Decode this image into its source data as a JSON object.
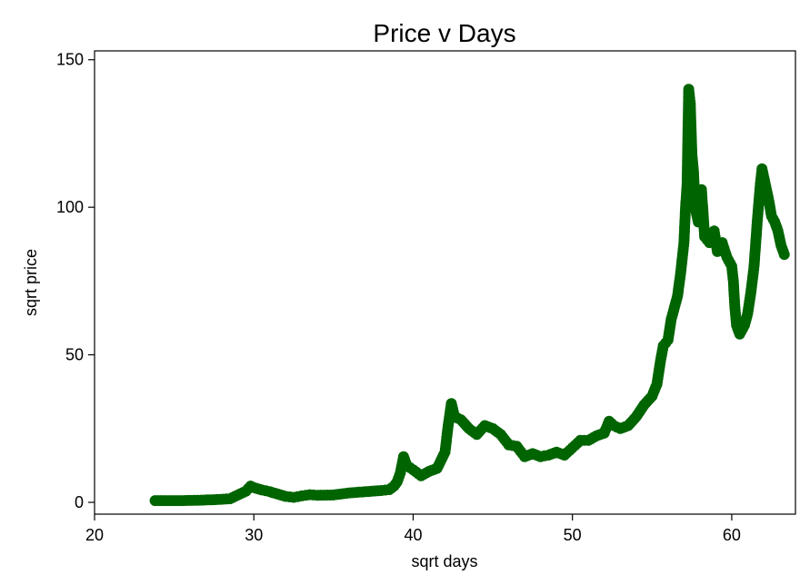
{
  "chart_data": {
    "type": "scatter",
    "title": "Price v Days",
    "xlabel": "sqrt days",
    "ylabel": "sqrt price",
    "xlim": [
      20,
      64
    ],
    "ylim": [
      -4,
      153
    ],
    "xticks": [
      20,
      30,
      40,
      50,
      60
    ],
    "yticks": [
      0,
      50,
      100,
      150
    ],
    "xtick_labels": [
      "20",
      "30",
      "40",
      "50",
      "60"
    ],
    "ytick_labels": [
      "0",
      "50",
      "100",
      "150"
    ],
    "grid": false,
    "legend": "none",
    "marker_color": "#006400",
    "series": [
      {
        "points": [
          [
            23.8,
            0.6
          ],
          [
            24.5,
            0.6
          ],
          [
            25.5,
            0.6
          ],
          [
            26.5,
            0.7
          ],
          [
            27.5,
            0.9
          ],
          [
            28.5,
            1.2
          ],
          [
            29.0,
            2.5
          ],
          [
            29.5,
            3.8
          ],
          [
            29.8,
            5.5
          ],
          [
            30.0,
            5.0
          ],
          [
            30.5,
            4.2
          ],
          [
            31.0,
            3.6
          ],
          [
            31.5,
            2.8
          ],
          [
            32.0,
            2.0
          ],
          [
            32.5,
            1.7
          ],
          [
            33.0,
            2.2
          ],
          [
            33.5,
            2.6
          ],
          [
            34.0,
            2.4
          ],
          [
            35.0,
            2.5
          ],
          [
            36.0,
            3.2
          ],
          [
            37.0,
            3.6
          ],
          [
            38.0,
            4.0
          ],
          [
            38.5,
            4.3
          ],
          [
            38.8,
            5.5
          ],
          [
            39.0,
            7.0
          ],
          [
            39.2,
            10.0
          ],
          [
            39.4,
            15.5
          ],
          [
            39.6,
            12.5
          ],
          [
            40.0,
            11.0
          ],
          [
            40.5,
            9.0
          ],
          [
            41.0,
            10.5
          ],
          [
            41.5,
            11.5
          ],
          [
            42.0,
            17.0
          ],
          [
            42.2,
            26.0
          ],
          [
            42.4,
            33.5
          ],
          [
            42.6,
            29.0
          ],
          [
            43.0,
            28.0
          ],
          [
            43.5,
            25.0
          ],
          [
            44.0,
            23.0
          ],
          [
            44.5,
            26.0
          ],
          [
            45.0,
            25.0
          ],
          [
            45.5,
            23.0
          ],
          [
            46.0,
            19.5
          ],
          [
            46.5,
            19.0
          ],
          [
            47.0,
            15.5
          ],
          [
            47.5,
            16.5
          ],
          [
            48.0,
            15.5
          ],
          [
            48.5,
            16.0
          ],
          [
            49.0,
            17.0
          ],
          [
            49.5,
            16.0
          ],
          [
            50.0,
            18.5
          ],
          [
            50.5,
            21.0
          ],
          [
            51.0,
            21.0
          ],
          [
            51.5,
            22.5
          ],
          [
            52.0,
            23.5
          ],
          [
            52.3,
            27.5
          ],
          [
            52.6,
            26.0
          ],
          [
            53.0,
            25.0
          ],
          [
            53.5,
            26.0
          ],
          [
            54.0,
            29.0
          ],
          [
            54.5,
            33.0
          ],
          [
            55.0,
            36.0
          ],
          [
            55.3,
            40.0
          ],
          [
            55.5,
            47.0
          ],
          [
            55.7,
            53.0
          ],
          [
            56.0,
            55.0
          ],
          [
            56.2,
            62.0
          ],
          [
            56.4,
            66.0
          ],
          [
            56.6,
            70.0
          ],
          [
            56.8,
            78.0
          ],
          [
            57.0,
            88.0
          ],
          [
            57.1,
            100.0
          ],
          [
            57.2,
            108.0
          ],
          [
            57.25,
            125.0
          ],
          [
            57.3,
            140.0
          ],
          [
            57.4,
            135.0
          ],
          [
            57.5,
            118.0
          ],
          [
            57.6,
            112.0
          ],
          [
            57.7,
            100.0
          ],
          [
            57.9,
            95.0
          ],
          [
            58.1,
            106.0
          ],
          [
            58.3,
            90.0
          ],
          [
            58.6,
            88.0
          ],
          [
            58.9,
            92.0
          ],
          [
            59.1,
            85.0
          ],
          [
            59.4,
            88.0
          ],
          [
            59.7,
            83.0
          ],
          [
            60.0,
            80.0
          ],
          [
            60.1,
            75.0
          ],
          [
            60.2,
            66.0
          ],
          [
            60.3,
            60.0
          ],
          [
            60.5,
            57.0
          ],
          [
            60.8,
            60.0
          ],
          [
            61.0,
            64.0
          ],
          [
            61.2,
            71.0
          ],
          [
            61.4,
            80.0
          ],
          [
            61.6,
            95.0
          ],
          [
            61.8,
            108.0
          ],
          [
            61.9,
            113.0
          ],
          [
            62.1,
            108.0
          ],
          [
            62.3,
            103.0
          ],
          [
            62.5,
            97.0
          ],
          [
            62.7,
            95.0
          ],
          [
            62.9,
            92.0
          ],
          [
            63.1,
            87.0
          ],
          [
            63.3,
            84.0
          ]
        ]
      }
    ]
  }
}
